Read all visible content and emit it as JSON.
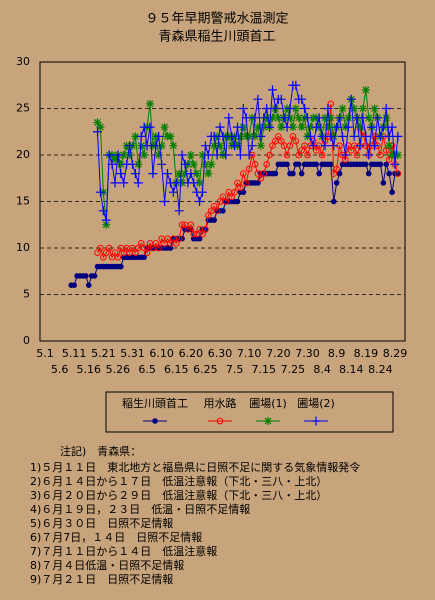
{
  "chart_data": {
    "type": "line",
    "title": "９５年早期警戒水温測定",
    "subtitle": "青森県稲生川頭首工",
    "categories": [
      "5.1",
      null,
      null,
      null,
      null,
      "5.6",
      null,
      null,
      null,
      null,
      "5.11",
      null,
      null,
      null,
      null,
      "5.16",
      null,
      null,
      null,
      null,
      "5.21",
      null,
      null,
      null,
      null,
      "5.26",
      null,
      null,
      null,
      null,
      "5.31",
      null,
      null,
      null,
      null,
      "6.5",
      null,
      null,
      null,
      null,
      "6.10",
      null,
      null,
      null,
      null,
      "6.15",
      null,
      null,
      null,
      null,
      "6.20",
      null,
      null,
      null,
      null,
      "6.25",
      null,
      null,
      null,
      null,
      "6.30",
      null,
      null,
      null,
      null,
      "7.5",
      null,
      null,
      null,
      null,
      "7.10",
      null,
      null,
      null,
      null,
      "7.15",
      null,
      null,
      null,
      null,
      "7.20",
      null,
      null,
      null,
      null,
      "7.25",
      null,
      null,
      null,
      null,
      "7.30",
      null,
      null,
      null,
      null,
      "8.4",
      null,
      null,
      null,
      null,
      "8.9",
      null,
      null,
      null,
      null,
      "8.14",
      null,
      null,
      null,
      null,
      "8.19",
      null,
      null,
      null,
      null,
      "8.24",
      null,
      null,
      null,
      null,
      "8.29",
      null,
      null
    ],
    "ylim": [
      0,
      30
    ],
    "yticks": [
      0,
      5,
      10,
      15,
      20,
      25,
      30
    ],
    "grid": true,
    "series": [
      {
        "name": "稲生川頭首工",
        "color": "#000080",
        "marker": "dot",
        "values": [
          null,
          null,
          null,
          null,
          null,
          null,
          null,
          null,
          null,
          6,
          6,
          7,
          7,
          7,
          7,
          6,
          7,
          7,
          8,
          8,
          8,
          8,
          8,
          8,
          8,
          8,
          8,
          9,
          9,
          9,
          9,
          9,
          9,
          9,
          9,
          10,
          10,
          10,
          10,
          10,
          10,
          10,
          10,
          10,
          11,
          11,
          11,
          11,
          12,
          12,
          12,
          11,
          11,
          11,
          12,
          12,
          13,
          13,
          13,
          14,
          14,
          14,
          15,
          15,
          15,
          15,
          15,
          16,
          16,
          17,
          17,
          17,
          17,
          17,
          18,
          18,
          18,
          18,
          18,
          18,
          19,
          19,
          19,
          19,
          18,
          18,
          19,
          19,
          18,
          19,
          19,
          19,
          19,
          19,
          18,
          19,
          19,
          19,
          19,
          15,
          17,
          18,
          19,
          19,
          19,
          19,
          19,
          19,
          19,
          19,
          19,
          18,
          19,
          19,
          19,
          19,
          17,
          19,
          18,
          16,
          18,
          18,
          null
        ]
      },
      {
        "name": "用水路",
        "color": "#ff0000",
        "marker": "circle",
        "values": [
          null,
          null,
          null,
          null,
          null,
          null,
          null,
          null,
          null,
          null,
          null,
          null,
          null,
          null,
          null,
          null,
          null,
          null,
          9.5,
          10,
          9,
          9.5,
          10,
          9,
          9.5,
          9,
          10,
          9.5,
          10,
          9.5,
          10,
          9.5,
          10,
          10.5,
          10,
          9.5,
          10.5,
          10,
          10.5,
          10,
          11,
          10.5,
          11,
          10.5,
          11,
          10.5,
          11,
          12.5,
          12.5,
          12,
          12.5,
          11.5,
          11.5,
          12,
          11.5,
          12,
          13.5,
          14,
          14.5,
          14,
          15,
          15.5,
          15,
          16,
          15.5,
          16,
          17,
          16.5,
          18,
          17,
          18.5,
          20,
          19,
          18,
          17.5,
          18,
          19,
          20,
          21,
          21.5,
          22,
          21.5,
          21,
          20,
          21,
          22,
          21.5,
          20,
          20.5,
          21,
          20,
          21,
          21.5,
          20.5,
          21,
          20,
          21.5,
          22,
          25.5,
          18,
          18.5,
          21,
          20,
          19.5,
          21,
          20.5,
          21,
          20,
          21,
          22.5,
          21,
          20,
          21,
          22,
          21,
          20,
          22,
          20.5,
          19.5,
          21,
          19,
          18,
          null
        ]
      },
      {
        "name": "圃場(1)",
        "color": "#008000",
        "marker": "star",
        "values": [
          null,
          null,
          null,
          null,
          null,
          null,
          null,
          null,
          null,
          null,
          null,
          null,
          null,
          null,
          null,
          null,
          null,
          null,
          23.5,
          23,
          16,
          12.5,
          20,
          20,
          19.5,
          20,
          19,
          20,
          21,
          20,
          21,
          22,
          19,
          21,
          20,
          23,
          25.5,
          21,
          22,
          20,
          21,
          23,
          22,
          22,
          21,
          17,
          18,
          17,
          18,
          19,
          20,
          19,
          18,
          17,
          20,
          19,
          18,
          19,
          21,
          22,
          21,
          20,
          22,
          22,
          21,
          22,
          21,
          22,
          23,
          22,
          22,
          24,
          22,
          23,
          21,
          23,
          24,
          23,
          24,
          25,
          24,
          23,
          24,
          25,
          24,
          23,
          25,
          24,
          23,
          24,
          22,
          23,
          24,
          24,
          23,
          22,
          24,
          23,
          24,
          22,
          23,
          24,
          25,
          23,
          24,
          26,
          25,
          24,
          23,
          25,
          27,
          24,
          23,
          25,
          24,
          22,
          23,
          24,
          21,
          20,
          20,
          20,
          null
        ]
      },
      {
        "name": "圃場(2)",
        "color": "#0000ff",
        "marker": "plus",
        "values": [
          null,
          null,
          null,
          null,
          null,
          null,
          null,
          null,
          null,
          null,
          null,
          null,
          null,
          null,
          null,
          null,
          null,
          null,
          22.5,
          16,
          14,
          13,
          20,
          19,
          17,
          20,
          18,
          17,
          19,
          21,
          19,
          18,
          17,
          22,
          23,
          21,
          23,
          18,
          21,
          22,
          19,
          15,
          18,
          17,
          16,
          17,
          14,
          20,
          19,
          17,
          18,
          17,
          16,
          15,
          16,
          21,
          20,
          22,
          22,
          20,
          23,
          22,
          20,
          24,
          22,
          21,
          23,
          20,
          25,
          24,
          20,
          21,
          24,
          26,
          22,
          24,
          25,
          23,
          27,
          25,
          26,
          26,
          24,
          23,
          25,
          27.5,
          27.5,
          26,
          26,
          25,
          24,
          22,
          21,
          23,
          24,
          22,
          21,
          25,
          22,
          21,
          23,
          24,
          22,
          20,
          23,
          26,
          22,
          24,
          21,
          24,
          22,
          20,
          23,
          21,
          24,
          22,
          23,
          25,
          22,
          23,
          19,
          22,
          null
        ]
      }
    ]
  },
  "notes": {
    "title": "注記)　青森県：",
    "items": [
      "1)５月１１日　東北地方と福島県に日照不足に関する気象情報発令",
      "2)６月１４日から１７日　低温注意報（下北・三八・上北）",
      "3)６月２０日から２９日　低温注意報（下北・三八・上北）",
      "4)６月１９日，２３日　低温・日照不足情報",
      "5)６月３０日　日照不足情報",
      "6)７月7日，１４日　日照不足情報",
      "7)７月１１日から１４日　低温注意報",
      "8)７月４日低温・日照不足情報",
      "9)７月２１日　日照不足情報"
    ]
  }
}
